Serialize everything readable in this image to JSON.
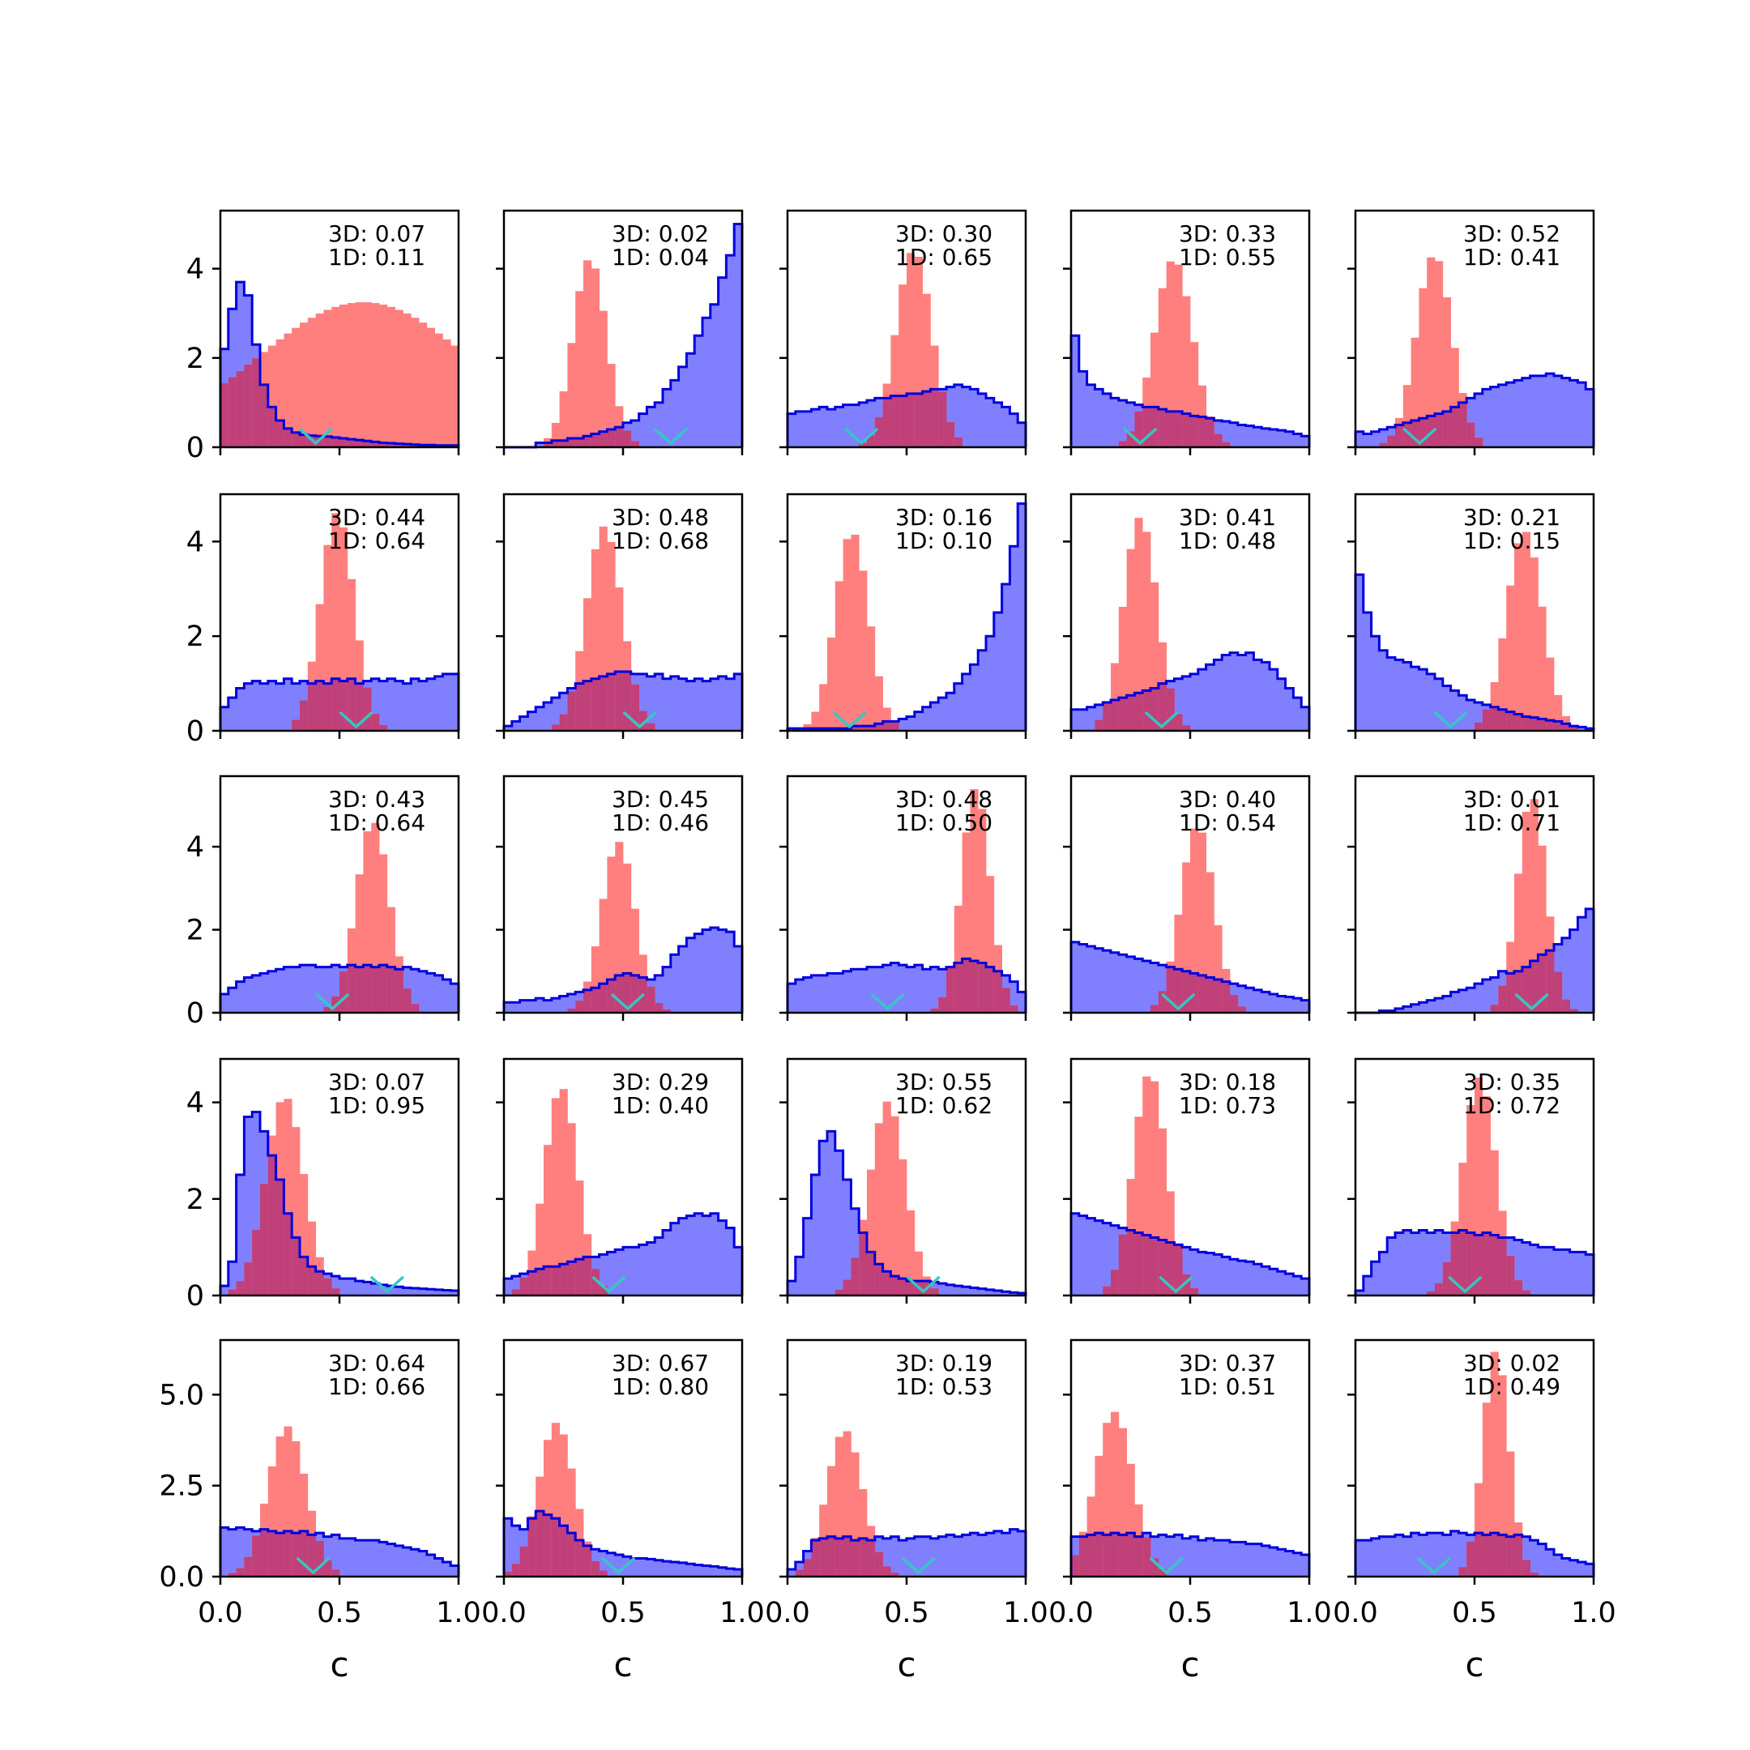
{
  "chart_data": {
    "type": "histogram-grid",
    "rows": 5,
    "cols": 5,
    "xlim": [
      0,
      1
    ],
    "xticks": [
      "0.0",
      "0.5",
      "1.0"
    ],
    "xlabel": "c",
    "colors": {
      "blue_fill": "#8080ff",
      "blue_edge": "#0000dd",
      "red": "#ff7f7f",
      "overlap": "#c0407a",
      "marker": "#35c7c2"
    },
    "row_yaxes": [
      {
        "ylim": [
          0,
          5.3
        ],
        "ticks": [
          0,
          2,
          4
        ],
        "labels": [
          "0",
          "2",
          "4"
        ]
      },
      {
        "ylim": [
          0,
          5.0
        ],
        "ticks": [
          0,
          2,
          4
        ],
        "labels": [
          "0",
          "2",
          "4"
        ]
      },
      {
        "ylim": [
          0,
          5.7
        ],
        "ticks": [
          0,
          2,
          4
        ],
        "labels": [
          "0",
          "2",
          "4"
        ]
      },
      {
        "ylim": [
          0,
          4.9
        ],
        "ticks": [
          0,
          2,
          4
        ],
        "labels": [
          "0",
          "2",
          "4"
        ]
      },
      {
        "ylim": [
          0,
          6.5
        ],
        "ticks": [
          0,
          2.5,
          5
        ],
        "labels": [
          "0.0",
          "2.5",
          "5.0"
        ]
      }
    ],
    "panels": [
      {
        "ann3d": "3D: 0.07",
        "ann1d": "1D: 0.11",
        "marker": 0.4,
        "blue": [
          2.2,
          3.1,
          3.7,
          3.4,
          2.3,
          1.4,
          0.9,
          0.6,
          0.42,
          0.33,
          0.28,
          0.26,
          0.25,
          0.24,
          0.22,
          0.2,
          0.18,
          0.16,
          0.14,
          0.12,
          0.1,
          0.09,
          0.08,
          0.07,
          0.06,
          0.05,
          0.05,
          0.04,
          0.04,
          0.04
        ],
        "red": [
          0.6,
          0.45,
          3.2,
          0.05
        ]
      },
      {
        "ann3d": "3D: 0.02",
        "ann1d": "1D: 0.04",
        "marker": 0.7,
        "blue": [
          0.0,
          0.0,
          0.0,
          0.0,
          0.1,
          0.1,
          0.15,
          0.15,
          0.2,
          0.2,
          0.25,
          0.3,
          0.35,
          0.4,
          0.45,
          0.55,
          0.6,
          0.75,
          0.9,
          1.0,
          1.3,
          1.5,
          1.8,
          2.1,
          2.5,
          2.9,
          3.2,
          3.8,
          4.3,
          5.0
        ],
        "red": [
          0.36,
          0.07,
          4.2,
          0.03
        ]
      },
      {
        "ann3d": "3D: 0.30",
        "ann1d": "1D: 0.65",
        "marker": 0.31,
        "blue": [
          0.75,
          0.8,
          0.8,
          0.85,
          0.9,
          0.85,
          0.9,
          0.95,
          0.95,
          1.0,
          1.05,
          1.1,
          1.1,
          1.15,
          1.15,
          1.2,
          1.2,
          1.25,
          1.3,
          1.3,
          1.35,
          1.4,
          1.35,
          1.3,
          1.2,
          1.1,
          1.0,
          0.9,
          0.75,
          0.55
        ],
        "red": [
          0.53,
          0.075,
          4.4,
          0.02
        ]
      },
      {
        "ann3d": "3D: 0.33",
        "ann1d": "1D: 0.55",
        "marker": 0.29,
        "blue": [
          2.5,
          1.7,
          1.4,
          1.3,
          1.2,
          1.1,
          1.05,
          1.0,
          0.95,
          0.9,
          0.9,
          0.85,
          0.8,
          0.8,
          0.75,
          0.7,
          0.68,
          0.65,
          0.6,
          0.58,
          0.55,
          0.5,
          0.48,
          0.45,
          0.42,
          0.4,
          0.38,
          0.35,
          0.3,
          0.25
        ],
        "red": [
          0.43,
          0.08,
          4.2,
          0.02
        ]
      },
      {
        "ann3d": "3D: 0.52",
        "ann1d": "1D: 0.41",
        "marker": 0.27,
        "blue": [
          0.35,
          0.3,
          0.35,
          0.4,
          0.45,
          0.5,
          0.55,
          0.6,
          0.65,
          0.7,
          0.75,
          0.8,
          0.9,
          1.0,
          1.1,
          1.2,
          1.3,
          1.35,
          1.4,
          1.45,
          1.5,
          1.55,
          1.6,
          1.6,
          1.65,
          1.6,
          1.55,
          1.5,
          1.45,
          1.3
        ],
        "red": [
          0.33,
          0.075,
          4.3,
          0.02
        ]
      },
      {
        "ann3d": "3D: 0.44",
        "ann1d": "1D: 0.64",
        "marker": 0.57,
        "blue": [
          0.5,
          0.7,
          0.9,
          1.0,
          1.05,
          1.0,
          1.05,
          1.0,
          1.1,
          1.0,
          1.05,
          1.0,
          1.05,
          1.0,
          1.1,
          1.05,
          1.1,
          1.0,
          1.05,
          1.1,
          1.05,
          1.1,
          1.05,
          1.0,
          1.1,
          1.05,
          1.1,
          1.15,
          1.2,
          1.2
        ],
        "red": [
          0.49,
          0.07,
          4.6,
          0.02
        ]
      },
      {
        "ann3d": "3D: 0.48",
        "ann1d": "1D: 0.68",
        "marker": 0.57,
        "blue": [
          0.1,
          0.2,
          0.3,
          0.4,
          0.5,
          0.6,
          0.7,
          0.8,
          0.9,
          1.0,
          1.05,
          1.1,
          1.15,
          1.2,
          1.25,
          1.25,
          1.2,
          1.2,
          1.15,
          1.2,
          1.1,
          1.15,
          1.1,
          1.05,
          1.1,
          1.05,
          1.1,
          1.15,
          1.1,
          1.2
        ],
        "red": [
          0.42,
          0.075,
          4.3,
          0.02
        ]
      },
      {
        "ann3d": "3D: 0.16",
        "ann1d": "1D: 0.10",
        "marker": 0.26,
        "blue": [
          0.05,
          0.05,
          0.05,
          0.05,
          0.05,
          0.05,
          0.05,
          0.05,
          0.1,
          0.1,
          0.1,
          0.15,
          0.2,
          0.2,
          0.25,
          0.3,
          0.4,
          0.5,
          0.6,
          0.7,
          0.8,
          1.0,
          1.2,
          1.4,
          1.7,
          2.0,
          2.5,
          3.1,
          3.9,
          4.8
        ],
        "red": [
          0.27,
          0.07,
          4.2,
          0.02
        ]
      },
      {
        "ann3d": "3D: 0.41",
        "ann1d": "1D: 0.48",
        "marker": 0.38,
        "blue": [
          0.45,
          0.45,
          0.5,
          0.55,
          0.6,
          0.65,
          0.7,
          0.75,
          0.8,
          0.85,
          0.9,
          1.0,
          1.05,
          1.1,
          1.15,
          1.2,
          1.3,
          1.4,
          1.5,
          1.6,
          1.65,
          1.6,
          1.65,
          1.5,
          1.45,
          1.3,
          1.1,
          0.9,
          0.7,
          0.5
        ],
        "red": [
          0.29,
          0.07,
          4.5,
          0.02
        ]
      },
      {
        "ann3d": "3D: 0.21",
        "ann1d": "1D: 0.15",
        "marker": 0.4,
        "blue": [
          3.3,
          2.5,
          2.0,
          1.7,
          1.55,
          1.5,
          1.45,
          1.35,
          1.3,
          1.2,
          1.1,
          0.95,
          0.85,
          0.75,
          0.65,
          0.6,
          0.55,
          0.5,
          0.45,
          0.4,
          0.35,
          0.3,
          0.28,
          0.25,
          0.22,
          0.2,
          0.15,
          0.1,
          0.08,
          0.05
        ],
        "red": [
          0.71,
          0.075,
          4.2,
          0.02
        ]
      },
      {
        "ann3d": "3D: 0.43",
        "ann1d": "1D: 0.64",
        "marker": 0.47,
        "blue": [
          0.45,
          0.6,
          0.75,
          0.85,
          0.9,
          0.95,
          1.0,
          1.05,
          1.1,
          1.1,
          1.15,
          1.15,
          1.1,
          1.1,
          1.15,
          1.1,
          1.15,
          1.1,
          1.15,
          1.1,
          1.15,
          1.1,
          1.05,
          1.1,
          1.05,
          1.0,
          0.95,
          0.9,
          0.8,
          0.7
        ],
        "red": [
          0.64,
          0.07,
          4.6,
          0.02
        ]
      },
      {
        "ann3d": "3D: 0.45",
        "ann1d": "1D: 0.46",
        "marker": 0.52,
        "blue": [
          0.25,
          0.25,
          0.3,
          0.3,
          0.35,
          0.3,
          0.35,
          0.4,
          0.45,
          0.5,
          0.55,
          0.6,
          0.7,
          0.8,
          0.9,
          0.95,
          0.9,
          0.85,
          0.8,
          0.9,
          1.1,
          1.4,
          1.6,
          1.8,
          1.9,
          2.0,
          2.05,
          2.0,
          1.95,
          1.6
        ],
        "red": [
          0.48,
          0.07,
          4.1,
          0.02
        ]
      },
      {
        "ann3d": "3D: 0.48",
        "ann1d": "1D: 0.50",
        "marker": 0.42,
        "blue": [
          0.7,
          0.8,
          0.85,
          0.9,
          0.9,
          0.95,
          0.95,
          1.0,
          1.05,
          1.05,
          1.1,
          1.1,
          1.15,
          1.2,
          1.15,
          1.1,
          1.15,
          1.05,
          1.1,
          1.05,
          1.1,
          1.2,
          1.3,
          1.25,
          1.2,
          1.1,
          1.0,
          0.9,
          0.75,
          0.5
        ],
        "red": [
          0.79,
          0.06,
          5.4,
          0.02
        ]
      },
      {
        "ann3d": "3D: 0.40",
        "ann1d": "1D: 0.54",
        "marker": 0.45,
        "blue": [
          1.7,
          1.65,
          1.6,
          1.55,
          1.5,
          1.45,
          1.4,
          1.35,
          1.3,
          1.25,
          1.2,
          1.15,
          1.1,
          1.05,
          1.0,
          0.95,
          0.9,
          0.85,
          0.8,
          0.75,
          0.7,
          0.65,
          0.6,
          0.55,
          0.5,
          0.45,
          0.4,
          0.38,
          0.35,
          0.3
        ],
        "red": [
          0.53,
          0.07,
          4.5,
          0.02
        ]
      },
      {
        "ann3d": "3D: 0.01",
        "ann1d": "1D: 0.71",
        "marker": 0.74,
        "blue": [
          0.0,
          0.0,
          0.0,
          0.05,
          0.05,
          0.1,
          0.15,
          0.2,
          0.25,
          0.3,
          0.35,
          0.4,
          0.5,
          0.55,
          0.6,
          0.7,
          0.8,
          0.85,
          1.0,
          0.95,
          1.0,
          1.1,
          1.25,
          1.4,
          1.5,
          1.65,
          1.8,
          2.0,
          2.3,
          2.5
        ],
        "red": [
          0.74,
          0.06,
          5.2,
          0.02
        ]
      },
      {
        "ann3d": "3D: 0.07",
        "ann1d": "1D: 0.95",
        "marker": 0.7,
        "blue": [
          0.2,
          0.7,
          2.5,
          3.7,
          3.8,
          3.4,
          2.9,
          2.4,
          1.7,
          1.2,
          0.8,
          0.6,
          0.5,
          0.45,
          0.4,
          0.35,
          0.35,
          0.3,
          0.28,
          0.25,
          0.22,
          0.2,
          0.18,
          0.16,
          0.15,
          0.14,
          0.13,
          0.12,
          0.11,
          0.1
        ],
        "red": [
          0.27,
          0.08,
          4.1,
          0.03
        ]
      },
      {
        "ann3d": "3D: 0.29",
        "ann1d": "1D: 0.40",
        "marker": 0.44,
        "blue": [
          0.35,
          0.4,
          0.45,
          0.5,
          0.55,
          0.6,
          0.6,
          0.65,
          0.7,
          0.75,
          0.8,
          0.8,
          0.85,
          0.9,
          0.95,
          1.0,
          1.0,
          1.05,
          1.1,
          1.2,
          1.35,
          1.5,
          1.6,
          1.65,
          1.7,
          1.65,
          1.7,
          1.55,
          1.4,
          1.0
        ],
        "red": [
          0.24,
          0.07,
          4.3,
          0.02
        ]
      },
      {
        "ann3d": "3D: 0.55",
        "ann1d": "1D: 0.62",
        "marker": 0.57,
        "blue": [
          0.3,
          0.8,
          1.6,
          2.5,
          3.2,
          3.4,
          3.0,
          2.4,
          1.8,
          1.3,
          0.9,
          0.65,
          0.5,
          0.4,
          0.35,
          0.3,
          0.3,
          0.3,
          0.28,
          0.25,
          0.22,
          0.2,
          0.18,
          0.16,
          0.14,
          0.12,
          0.1,
          0.08,
          0.06,
          0.05
        ],
        "red": [
          0.42,
          0.075,
          4.0,
          0.02
        ]
      },
      {
        "ann3d": "3D: 0.18",
        "ann1d": "1D: 0.73",
        "marker": 0.44,
        "blue": [
          1.7,
          1.65,
          1.6,
          1.55,
          1.5,
          1.45,
          1.4,
          1.35,
          1.3,
          1.25,
          1.2,
          1.15,
          1.1,
          1.05,
          1.0,
          0.95,
          0.9,
          0.88,
          0.85,
          0.8,
          0.75,
          0.72,
          0.7,
          0.65,
          0.6,
          0.55,
          0.5,
          0.45,
          0.4,
          0.35
        ],
        "red": [
          0.33,
          0.07,
          4.6,
          0.02
        ]
      },
      {
        "ann3d": "3D: 0.35",
        "ann1d": "1D: 0.72",
        "marker": 0.46,
        "blue": [
          0.1,
          0.4,
          0.7,
          0.9,
          1.2,
          1.3,
          1.35,
          1.3,
          1.35,
          1.3,
          1.35,
          1.3,
          1.3,
          1.35,
          1.3,
          1.25,
          1.3,
          1.25,
          1.2,
          1.2,
          1.15,
          1.1,
          1.05,
          1.0,
          1.0,
          0.95,
          0.95,
          0.9,
          0.9,
          0.85
        ],
        "red": [
          0.52,
          0.07,
          4.5,
          0.02
        ]
      },
      {
        "ann3d": "3D: 0.64",
        "ann1d": "1D: 0.66",
        "marker": 0.39,
        "blue": [
          1.35,
          1.3,
          1.35,
          1.3,
          1.25,
          1.3,
          1.25,
          1.2,
          1.25,
          1.2,
          1.25,
          1.15,
          1.2,
          1.1,
          1.15,
          1.05,
          1.05,
          1.0,
          1.0,
          1.0,
          0.95,
          0.9,
          0.85,
          0.8,
          0.75,
          0.7,
          0.6,
          0.5,
          0.4,
          0.3
        ],
        "red": [
          0.28,
          0.08,
          4.1,
          0.03
        ]
      },
      {
        "ann3d": "3D: 0.67",
        "ann1d": "1D: 0.80",
        "marker": 0.48,
        "blue": [
          1.6,
          1.4,
          1.3,
          1.6,
          1.8,
          1.7,
          1.6,
          1.4,
          1.2,
          1.0,
          0.85,
          0.75,
          0.7,
          0.65,
          0.6,
          0.55,
          0.5,
          0.5,
          0.48,
          0.45,
          0.42,
          0.4,
          0.38,
          0.35,
          0.32,
          0.3,
          0.28,
          0.25,
          0.22,
          0.2
        ],
        "red": [
          0.22,
          0.075,
          4.2,
          0.03
        ]
      },
      {
        "ann3d": "3D: 0.19",
        "ann1d": "1D: 0.53",
        "marker": 0.55,
        "blue": [
          0.2,
          0.4,
          0.7,
          1.0,
          1.05,
          1.1,
          1.05,
          1.1,
          1.0,
          1.05,
          1.0,
          1.1,
          1.05,
          1.1,
          1.0,
          1.05,
          1.1,
          1.1,
          1.05,
          1.1,
          1.15,
          1.1,
          1.15,
          1.2,
          1.15,
          1.2,
          1.25,
          1.2,
          1.3,
          1.25
        ],
        "red": [
          0.24,
          0.075,
          4.0,
          0.03
        ]
      },
      {
        "ann3d": "3D: 0.37",
        "ann1d": "1D: 0.51",
        "marker": 0.4,
        "blue": [
          1.1,
          1.1,
          1.15,
          1.2,
          1.15,
          1.2,
          1.15,
          1.2,
          1.1,
          1.2,
          1.1,
          1.15,
          1.1,
          1.15,
          1.05,
          1.1,
          1.0,
          1.05,
          1.0,
          1.0,
          0.95,
          0.95,
          0.9,
          0.9,
          0.85,
          0.8,
          0.75,
          0.7,
          0.65,
          0.6
        ],
        "red": [
          0.18,
          0.08,
          4.5,
          0.03
        ]
      },
      {
        "ann3d": "3D: 0.02",
        "ann1d": "1D: 0.49",
        "marker": 0.33,
        "blue": [
          1.0,
          1.0,
          1.05,
          1.1,
          1.1,
          1.15,
          1.1,
          1.2,
          1.15,
          1.2,
          1.2,
          1.15,
          1.25,
          1.2,
          1.15,
          1.2,
          1.15,
          1.2,
          1.15,
          1.1,
          1.15,
          1.1,
          1.0,
          0.9,
          0.75,
          0.6,
          0.5,
          0.45,
          0.4,
          0.35
        ],
        "red": [
          0.59,
          0.055,
          6.2,
          0.02
        ]
      }
    ]
  }
}
